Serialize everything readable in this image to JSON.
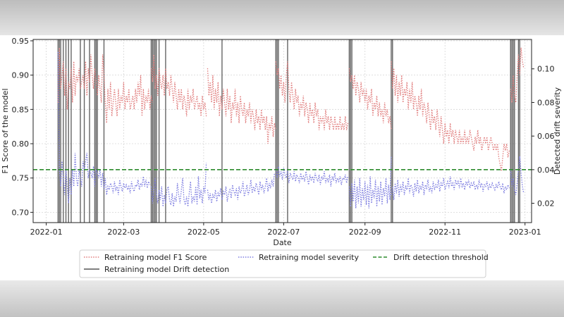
{
  "chart_data": {
    "type": "line",
    "xlabel": "Date",
    "ylabel_left": "F1 Score of the model",
    "ylabel_right": "Detected drift severity",
    "ylim_left": [
      0.685,
      0.952
    ],
    "ylim_right": [
      0.0085,
      0.1175
    ],
    "xlim_days": [
      -10,
      370
    ],
    "x_ticks": [
      {
        "day": 0,
        "label": "2022-01"
      },
      {
        "day": 59,
        "label": "2022-03"
      },
      {
        "day": 120,
        "label": "2022-05"
      },
      {
        "day": 181,
        "label": "2022-07"
      },
      {
        "day": 243,
        "label": "2022-09"
      },
      {
        "day": 304,
        "label": "2022-11"
      },
      {
        "day": 365,
        "label": "2023-01"
      }
    ],
    "y_ticks_left": [
      0.7,
      0.75,
      0.8,
      0.85,
      0.9,
      0.95
    ],
    "y_tick_labels_left": [
      "0.70",
      "0.75",
      "0.80",
      "0.85",
      "0.90",
      "0.95"
    ],
    "y_ticks_right": [
      0.02,
      0.04,
      0.06,
      0.08,
      0.1
    ],
    "y_tick_labels_right": [
      "0.02",
      "0.04",
      "0.06",
      "0.08",
      "0.10"
    ],
    "threshold": 0.04,
    "drift_detection_days": [
      9,
      10,
      11,
      13,
      15,
      17,
      19,
      26,
      29,
      33,
      37,
      38,
      39,
      44,
      80,
      81,
      82,
      83,
      84,
      86,
      91,
      134,
      175,
      176,
      177,
      184,
      231,
      232,
      233,
      263,
      264,
      354,
      355,
      356,
      357,
      360,
      361
    ],
    "series": [
      {
        "name": "Retraining model F1 Score",
        "color": "#e07b7b",
        "style": "dotted",
        "axis": "left",
        "segments": [
          {
            "start": 9,
            "values": [
              0.86,
              0.94,
              0.88,
              0.9,
              0.92,
              0.87,
              0.91,
              0.85,
              0.89,
              0.88,
              0.91,
              0.86,
              0.92,
              0.87,
              0.9,
              0.89,
              0.91,
              0.88,
              0.89,
              0.9,
              0.88,
              0.92,
              0.87,
              0.91,
              0.89,
              0.93,
              0.9,
              0.88,
              0.91,
              0.89,
              0.87,
              0.9,
              0.88,
              0.86,
              0.93,
              0.9,
              0.86,
              0.83,
              0.88,
              0.85,
              0.89,
              0.84,
              0.86,
              0.88,
              0.86,
              0.84,
              0.88,
              0.85,
              0.87,
              0.86,
              0.89,
              0.85,
              0.87,
              0.86,
              0.88,
              0.85,
              0.86,
              0.87,
              0.85,
              0.88,
              0.86,
              0.89,
              0.87,
              0.9,
              0.84,
              0.88,
              0.85,
              0.87,
              0.86,
              0.88,
              0.85,
              0.87,
              0.86
            ]
          },
          {
            "start": 80,
            "values": [
              0.91,
              0.89,
              0.93,
              0.88,
              0.9,
              0.87,
              0.91,
              0.89,
              0.88,
              0.9,
              0.87,
              0.91,
              0.88,
              0.89,
              0.87,
              0.9,
              0.88,
              0.86,
              0.89,
              0.87,
              0.85,
              0.88,
              0.86,
              0.88,
              0.85,
              0.87,
              0.86,
              0.84,
              0.88,
              0.85,
              0.87,
              0.86,
              0.88,
              0.85,
              0.86,
              0.87,
              0.85,
              0.86,
              0.84,
              0.87,
              0.85,
              0.86,
              0.84
            ]
          },
          {
            "start": 123,
            "values": [
              0.91,
              0.87,
              0.89,
              0.86,
              0.9,
              0.85,
              0.88,
              0.86,
              0.89,
              0.84,
              0.87,
              0.85,
              0.88,
              0.86,
              0.84,
              0.88,
              0.85,
              0.87,
              0.83,
              0.86,
              0.85,
              0.88,
              0.84,
              0.86,
              0.83,
              0.87,
              0.85,
              0.84,
              0.86,
              0.83,
              0.85,
              0.84,
              0.86,
              0.83,
              0.85,
              0.84,
              0.82,
              0.85,
              0.83,
              0.84,
              0.82,
              0.85,
              0.83,
              0.84,
              0.82,
              0.84,
              0.8,
              0.83,
              0.82,
              0.84,
              0.81,
              0.83,
              0.82
            ]
          },
          {
            "start": 175,
            "values": [
              0.92,
              0.9,
              0.91,
              0.88,
              0.9,
              0.87,
              0.89,
              0.86,
              0.9,
              0.92,
              0.88,
              0.86,
              0.89,
              0.87,
              0.85,
              0.88,
              0.86,
              0.87,
              0.84,
              0.86,
              0.85,
              0.87,
              0.84,
              0.86,
              0.85,
              0.83,
              0.86,
              0.84,
              0.85,
              0.83,
              0.86,
              0.84,
              0.85,
              0.82,
              0.84,
              0.83,
              0.84,
              0.82,
              0.85,
              0.83,
              0.84,
              0.82,
              0.84,
              0.83,
              0.82,
              0.84,
              0.82,
              0.83,
              0.82,
              0.84,
              0.82,
              0.83,
              0.82,
              0.84,
              0.82,
              0.83
            ]
          },
          {
            "start": 231,
            "values": [
              0.91,
              0.89,
              0.9,
              0.88,
              0.9,
              0.87,
              0.89,
              0.88,
              0.86,
              0.89,
              0.87,
              0.88,
              0.86,
              0.88,
              0.85,
              0.87,
              0.86,
              0.88,
              0.84,
              0.86,
              0.85,
              0.87,
              0.84,
              0.86,
              0.84,
              0.85,
              0.83,
              0.86,
              0.84,
              0.85,
              0.83,
              0.84,
              0.82
            ]
          },
          {
            "start": 263,
            "values": [
              0.92,
              0.88,
              0.91,
              0.87,
              0.9,
              0.86,
              0.89,
              0.87,
              0.9,
              0.86,
              0.88,
              0.87,
              0.89,
              0.85,
              0.88,
              0.86,
              0.89,
              0.85,
              0.87,
              0.86,
              0.84,
              0.87,
              0.85,
              0.88,
              0.84,
              0.86,
              0.85,
              0.83,
              0.86,
              0.84,
              0.82,
              0.85,
              0.83,
              0.84,
              0.82,
              0.85,
              0.83,
              0.81,
              0.84,
              0.82,
              0.8,
              0.83,
              0.81,
              0.82,
              0.8,
              0.83,
              0.81,
              0.82,
              0.8,
              0.82,
              0.81,
              0.8,
              0.82,
              0.8,
              0.81,
              0.8,
              0.82,
              0.8,
              0.81,
              0.8,
              0.82,
              0.81,
              0.8,
              0.79,
              0.81,
              0.8,
              0.82,
              0.8,
              0.81,
              0.79,
              0.8,
              0.81,
              0.8,
              0.81,
              0.79,
              0.8,
              0.81,
              0.8,
              0.79,
              0.8,
              0.79,
              0.8,
              0.78,
              0.77,
              0.76,
              0.78,
              0.8,
              0.79,
              0.8,
              0.78,
              0.79
            ]
          },
          {
            "start": 354,
            "values": [
              0.88,
              0.86,
              0.9,
              0.87,
              0.86,
              0.9,
              0.93,
              0.9,
              0.94,
              0.92,
              0.91
            ]
          }
        ]
      },
      {
        "name": "Retraining model severity",
        "color": "#7b7be0",
        "style": "dotted",
        "axis": "right",
        "segments": [
          {
            "start": 9,
            "values": [
              0.11,
              0.04,
              0.03,
              0.045,
              0.035,
              0.025,
              0.04,
              0.03,
              0.02,
              0.035,
              0.025,
              0.04,
              0.03,
              0.05,
              0.035,
              0.03,
              0.04,
              0.035,
              0.03,
              0.045,
              0.04,
              0.045,
              0.05,
              0.035,
              0.04,
              0.038,
              0.035,
              0.042,
              0.03,
              0.04,
              0.038,
              0.035,
              0.04,
              0.03,
              0.038,
              0.028,
              0.035,
              0.025,
              0.03,
              0.028,
              0.032,
              0.03,
              0.026,
              0.033,
              0.028,
              0.03,
              0.025,
              0.034,
              0.03,
              0.027,
              0.032,
              0.029,
              0.031,
              0.028,
              0.03,
              0.026,
              0.033,
              0.029,
              0.027,
              0.031,
              0.03,
              0.034,
              0.028,
              0.032,
              0.03,
              0.036,
              0.03,
              0.034,
              0.029,
              0.033,
              0.031
            ]
          },
          {
            "start": 80,
            "values": [
              0.03,
              0.02,
              0.028,
              0.035,
              0.025,
              0.02,
              0.028,
              0.022,
              0.03,
              0.018,
              0.025,
              0.02,
              0.028,
              0.03,
              0.022,
              0.019,
              0.026,
              0.018,
              0.024,
              0.021,
              0.032,
              0.025,
              0.02,
              0.028,
              0.035,
              0.022,
              0.019,
              0.024,
              0.018,
              0.026,
              0.033,
              0.02,
              0.024,
              0.021,
              0.03,
              0.019,
              0.036,
              0.023,
              0.028,
              0.02,
              0.03,
              0.026,
              0.044
            ]
          },
          {
            "start": 123,
            "values": [
              0.028,
              0.022,
              0.026,
              0.02,
              0.025,
              0.023,
              0.028,
              0.021,
              0.026,
              0.024,
              0.029,
              0.022,
              0.027,
              0.025,
              0.03,
              0.021,
              0.026,
              0.028,
              0.023,
              0.031,
              0.027,
              0.025,
              0.029,
              0.022,
              0.03,
              0.026,
              0.028,
              0.033,
              0.024,
              0.027,
              0.031,
              0.025,
              0.028,
              0.034,
              0.026,
              0.03,
              0.027,
              0.032,
              0.029,
              0.025,
              0.033,
              0.028,
              0.031,
              0.026,
              0.03,
              0.035,
              0.027,
              0.032,
              0.029,
              0.034,
              0.03,
              0.038
            ]
          },
          {
            "start": 175,
            "values": [
              0.04,
              0.035,
              0.042,
              0.036,
              0.039,
              0.034,
              0.041,
              0.037,
              0.035,
              0.04,
              0.032,
              0.038,
              0.036,
              0.034,
              0.039,
              0.033,
              0.037,
              0.035,
              0.032,
              0.038,
              0.034,
              0.036,
              0.033,
              0.039,
              0.035,
              0.031,
              0.037,
              0.034,
              0.036,
              0.032,
              0.038,
              0.035,
              0.033,
              0.037,
              0.031,
              0.036,
              0.034,
              0.039,
              0.032,
              0.035,
              0.033,
              0.037,
              0.03,
              0.036,
              0.034,
              0.038,
              0.032,
              0.035,
              0.033,
              0.036,
              0.031,
              0.035,
              0.034,
              0.037,
              0.032,
              0.036
            ]
          },
          {
            "start": 231,
            "values": [
              0.03,
              0.018,
              0.032,
              0.021,
              0.034,
              0.017,
              0.03,
              0.02,
              0.035,
              0.018,
              0.029,
              0.022,
              0.033,
              0.019,
              0.031,
              0.017,
              0.036,
              0.02,
              0.028,
              0.023,
              0.034,
              0.018,
              0.03,
              0.021,
              0.033,
              0.019,
              0.029,
              0.024,
              0.035,
              0.02,
              0.031,
              0.022,
              0.048
            ]
          },
          {
            "start": 263,
            "values": [
              0.025,
              0.03,
              0.022,
              0.032,
              0.026,
              0.034,
              0.024,
              0.031,
              0.027,
              0.033,
              0.025,
              0.03,
              0.028,
              0.035,
              0.026,
              0.031,
              0.029,
              0.024,
              0.032,
              0.027,
              0.034,
              0.026,
              0.03,
              0.028,
              0.033,
              0.025,
              0.031,
              0.029,
              0.034,
              0.027,
              0.03,
              0.026,
              0.033,
              0.028,
              0.031,
              0.029,
              0.034,
              0.027,
              0.032,
              0.03,
              0.035,
              0.028,
              0.031,
              0.033,
              0.029,
              0.036,
              0.03,
              0.032,
              0.028,
              0.034,
              0.031,
              0.033,
              0.029,
              0.035,
              0.03,
              0.032,
              0.028,
              0.033,
              0.031,
              0.034,
              0.029,
              0.032,
              0.03,
              0.033,
              0.028,
              0.031,
              0.029,
              0.034,
              0.03,
              0.032,
              0.027,
              0.031,
              0.03,
              0.033,
              0.028,
              0.031,
              0.029,
              0.032,
              0.03,
              0.028,
              0.031,
              0.029,
              0.033,
              0.03,
              0.028,
              0.032,
              0.026,
              0.03,
              0.028,
              0.031,
              0.029
            ]
          },
          {
            "start": 354,
            "values": [
              0.04,
              0.03,
              0.035,
              0.028,
              0.025,
              0.032,
              0.04,
              0.048,
              0.038,
              0.03,
              0.026
            ]
          }
        ]
      }
    ],
    "legend": [
      {
        "label": "Retraining model F1 Score",
        "kind": "dotted",
        "color": "#e07b7b"
      },
      {
        "label": "Retraining model severity",
        "kind": "dotted",
        "color": "#7b7be0"
      },
      {
        "label": "Drift detection threshold",
        "kind": "dashed",
        "color": "#2e8b2e"
      },
      {
        "label": "Retraining model Drift detection",
        "kind": "solid",
        "color": "#555555"
      }
    ]
  }
}
